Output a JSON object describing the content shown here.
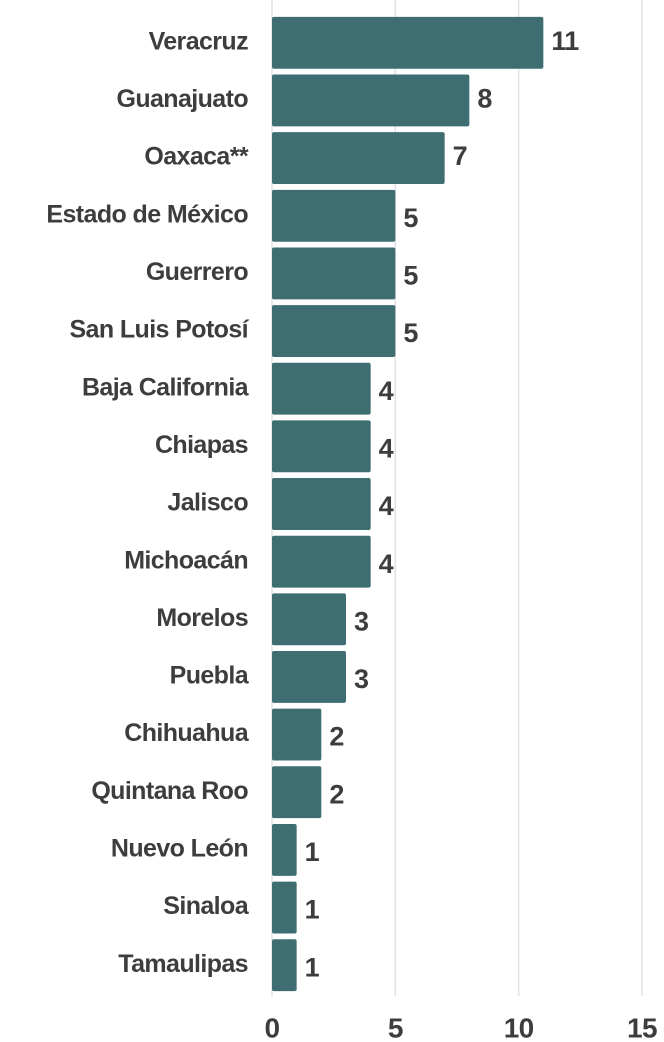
{
  "chart_data": {
    "type": "barh",
    "categories": [
      "Veracruz",
      "Guanajuato",
      "Oaxaca**",
      "Estado de México",
      "Guerrero",
      "San Luis Potosí",
      "Baja California",
      "Chiapas",
      "Jalisco",
      "Michoacán",
      "Morelos",
      "Puebla",
      "Chihuahua",
      "Quintana Roo",
      "Nuevo León",
      "Sinaloa",
      "Tamaulipas"
    ],
    "values": [
      11,
      8,
      7,
      5,
      5,
      5,
      4,
      4,
      4,
      4,
      3,
      3,
      2,
      2,
      1,
      1,
      1
    ],
    "color": "#3f6e72",
    "xlim": [
      0,
      15
    ],
    "xticks": [
      0,
      5,
      10,
      15
    ],
    "grid": true
  }
}
